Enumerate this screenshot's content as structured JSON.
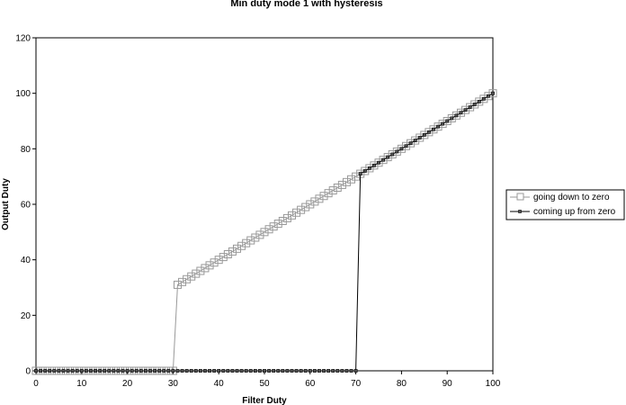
{
  "chart_data": {
    "type": "line",
    "title": "Min duty mode 1 with hysteresis",
    "xlabel": "Filter Duty",
    "ylabel": "Output Duty",
    "xlim": [
      0,
      100
    ],
    "ylim": [
      0,
      120
    ],
    "xticks": [
      0,
      10,
      20,
      30,
      40,
      50,
      60,
      70,
      80,
      90,
      100
    ],
    "yticks": [
      0,
      20,
      40,
      60,
      80,
      100,
      120
    ],
    "grid": false,
    "legend_position": "right",
    "series": [
      {
        "name": "going down to zero",
        "color": "#999999",
        "marker": "open-square",
        "step_threshold": 31,
        "x_range": [
          0,
          100
        ],
        "rule": "y = 0 for x < 31; y = x for x >= 31"
      },
      {
        "name": "coming up from zero",
        "color": "#000000",
        "marker": "small-filled-square",
        "step_threshold": 71,
        "x_range": [
          0,
          100
        ],
        "rule": "y = 0 for x < 71; y = x for x >= 71"
      }
    ]
  }
}
